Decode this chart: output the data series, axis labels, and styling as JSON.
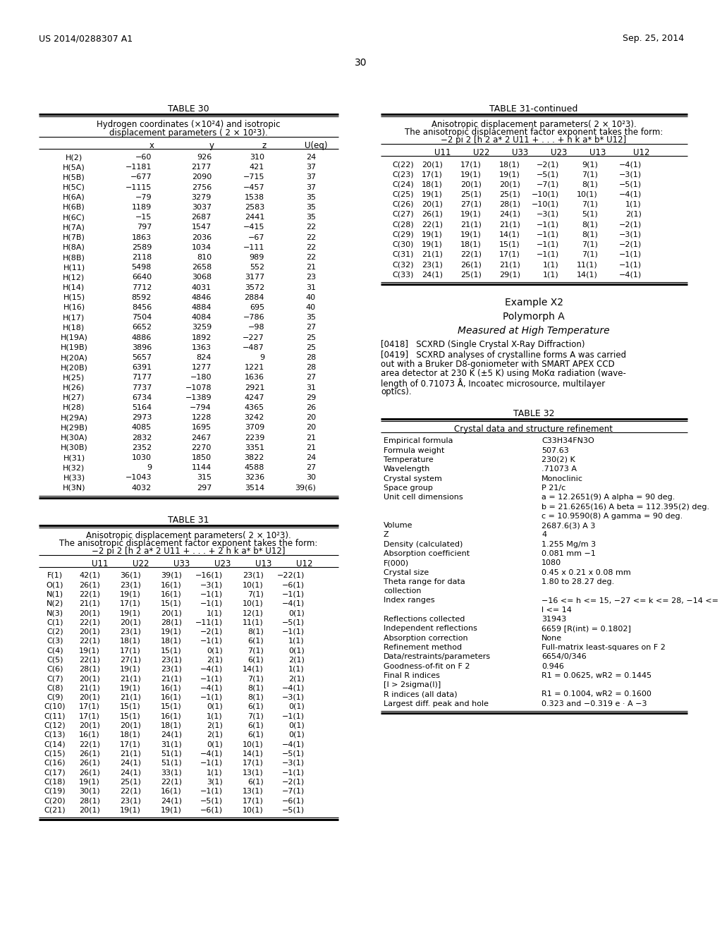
{
  "header_left": "US 2014/0288307 A1",
  "header_right": "Sep. 25, 2014",
  "page_number": "30",
  "background_color": "#ffffff",
  "text_color": "#000000",
  "table30_title": "TABLE 30",
  "table30_subtitle1": "Hydrogen coordinates (×10²4) and isotropic",
  "table30_subtitle2": "displacement parameters ( 2 × 10²3).",
  "table30_headers": [
    "",
    "x",
    "y",
    "z",
    "U(eq)"
  ],
  "table30_data": [
    [
      "H(2)",
      "−60",
      "926",
      "310",
      "24"
    ],
    [
      "H(5A)",
      "−1181",
      "2177",
      "421",
      "37"
    ],
    [
      "H(5B)",
      "−677",
      "2090",
      "−715",
      "37"
    ],
    [
      "H(5C)",
      "−1115",
      "2756",
      "−457",
      "37"
    ],
    [
      "H(6A)",
      "−79",
      "3279",
      "1538",
      "35"
    ],
    [
      "H(6B)",
      "1189",
      "3037",
      "2583",
      "35"
    ],
    [
      "H(6C)",
      "−15",
      "2687",
      "2441",
      "35"
    ],
    [
      "H(7A)",
      "797",
      "1547",
      "−415",
      "22"
    ],
    [
      "H(7B)",
      "1863",
      "2036",
      "−67",
      "22"
    ],
    [
      "H(8A)",
      "2589",
      "1034",
      "−111",
      "22"
    ],
    [
      "H(8B)",
      "2118",
      "810",
      "989",
      "22"
    ],
    [
      "H(11)",
      "5498",
      "2658",
      "552",
      "21"
    ],
    [
      "H(12)",
      "6640",
      "3068",
      "3177",
      "23"
    ],
    [
      "H(14)",
      "7712",
      "4031",
      "3572",
      "31"
    ],
    [
      "H(15)",
      "8592",
      "4846",
      "2884",
      "40"
    ],
    [
      "H(16)",
      "8456",
      "4884",
      "695",
      "40"
    ],
    [
      "H(17)",
      "7504",
      "4084",
      "−786",
      "35"
    ],
    [
      "H(18)",
      "6652",
      "3259",
      "−98",
      "27"
    ],
    [
      "H(19A)",
      "4886",
      "1892",
      "−227",
      "25"
    ],
    [
      "H(19B)",
      "3896",
      "1363",
      "−487",
      "25"
    ],
    [
      "H(20A)",
      "5657",
      "824",
      "9",
      "28"
    ],
    [
      "H(20B)",
      "6391",
      "1277",
      "1221",
      "28"
    ],
    [
      "H(25)",
      "7177",
      "−180",
      "1636",
      "27"
    ],
    [
      "H(26)",
      "7737",
      "−1078",
      "2921",
      "31"
    ],
    [
      "H(27)",
      "6734",
      "−1389",
      "4247",
      "29"
    ],
    [
      "H(28)",
      "5164",
      "−794",
      "4365",
      "26"
    ],
    [
      "H(29A)",
      "2973",
      "1228",
      "3242",
      "20"
    ],
    [
      "H(29B)",
      "4085",
      "1695",
      "3709",
      "20"
    ],
    [
      "H(30A)",
      "2832",
      "2467",
      "2239",
      "21"
    ],
    [
      "H(30B)",
      "2352",
      "2270",
      "3351",
      "21"
    ],
    [
      "H(31)",
      "1030",
      "1850",
      "3822",
      "24"
    ],
    [
      "H(32)",
      "9",
      "1144",
      "4588",
      "27"
    ],
    [
      "H(33)",
      "−1043",
      "315",
      "3236",
      "30"
    ],
    [
      "H(3N)",
      "4032",
      "297",
      "3514",
      "39(6)"
    ]
  ],
  "table31cont_title": "TABLE 31-continued",
  "table31cont_subtitle1": "Anisotropic displacement parameters( 2 × 10²3).",
  "table31cont_subtitle2": "The anisotropic displacement factor exponent takes the form:",
  "table31cont_subtitle3": "−2 pi 2 [h 2 a* 2 U11 + . . . + h k a* b* U12]",
  "table31cont_headers": [
    "",
    "U11",
    "U22",
    "U33",
    "U23",
    "U13",
    "U12"
  ],
  "table31cont_data": [
    [
      "C(22)",
      "20(1)",
      "17(1)",
      "18(1)",
      "−2(1)",
      "9(1)",
      "−4(1)"
    ],
    [
      "C(23)",
      "17(1)",
      "19(1)",
      "19(1)",
      "−5(1)",
      "7(1)",
      "−3(1)"
    ],
    [
      "C(24)",
      "18(1)",
      "20(1)",
      "20(1)",
      "−7(1)",
      "8(1)",
      "−5(1)"
    ],
    [
      "C(25)",
      "19(1)",
      "25(1)",
      "25(1)",
      "−10(1)",
      "10(1)",
      "−4(1)"
    ],
    [
      "C(26)",
      "20(1)",
      "27(1)",
      "28(1)",
      "−10(1)",
      "7(1)",
      "1(1)"
    ],
    [
      "C(27)",
      "26(1)",
      "19(1)",
      "24(1)",
      "−3(1)",
      "5(1)",
      "2(1)"
    ],
    [
      "C(28)",
      "22(1)",
      "21(1)",
      "21(1)",
      "−1(1)",
      "8(1)",
      "−2(1)"
    ],
    [
      "C(29)",
      "19(1)",
      "19(1)",
      "14(1)",
      "−1(1)",
      "8(1)",
      "−3(1)"
    ],
    [
      "C(30)",
      "19(1)",
      "18(1)",
      "15(1)",
      "−1(1)",
      "7(1)",
      "−2(1)"
    ],
    [
      "C(31)",
      "21(1)",
      "22(1)",
      "17(1)",
      "−1(1)",
      "7(1)",
      "−1(1)"
    ],
    [
      "C(32)",
      "23(1)",
      "26(1)",
      "21(1)",
      "1(1)",
      "11(1)",
      "−1(1)"
    ],
    [
      "C(33)",
      "24(1)",
      "25(1)",
      "29(1)",
      "1(1)",
      "14(1)",
      "−4(1)"
    ]
  ],
  "example_text": "Example X2",
  "polymorph_text": "Polymorph A",
  "measured_text": "Measured at High Temperature",
  "para0418": "[0418]   SCXRD (Single Crystal X-Ray Diffraction)",
  "para0419_lines": [
    "[0419]   SCXRD analyses of crystalline forms A was carried",
    "out with a Bruker D8-goniometer with SMART APEX CCD",
    "area detector at 230 K (±5 K) using MoKα radiation (wave-",
    "length of 0.71073 Å, Incoatec microsource, multilayer",
    "optics)."
  ],
  "table31_title": "TABLE 31",
  "table31_subtitle1": "Anisotropic displacement parameters( 2 × 10²3).",
  "table31_subtitle2": "The anisotropic displacement factor exponent takes the form:",
  "table31_subtitle3": "−2 pi 2 [h 2 a* 2 U11 + . . . + 2 h k a* b* U12]",
  "table31_headers": [
    "",
    "U11",
    "U22",
    "U33",
    "U23",
    "U13",
    "U12"
  ],
  "table31_data": [
    [
      "F(1)",
      "42(1)",
      "36(1)",
      "39(1)",
      "−16(1)",
      "23(1)",
      "−22(1)"
    ],
    [
      "O(1)",
      "26(1)",
      "23(1)",
      "16(1)",
      "−3(1)",
      "10(1)",
      "−6(1)"
    ],
    [
      "N(1)",
      "22(1)",
      "19(1)",
      "16(1)",
      "−1(1)",
      "7(1)",
      "−1(1)"
    ],
    [
      "N(2)",
      "21(1)",
      "17(1)",
      "15(1)",
      "−1(1)",
      "10(1)",
      "−4(1)"
    ],
    [
      "N(3)",
      "20(1)",
      "19(1)",
      "20(1)",
      "1(1)",
      "12(1)",
      "0(1)"
    ],
    [
      "C(1)",
      "22(1)",
      "20(1)",
      "28(1)",
      "−11(1)",
      "11(1)",
      "−5(1)"
    ],
    [
      "C(2)",
      "20(1)",
      "23(1)",
      "19(1)",
      "−2(1)",
      "8(1)",
      "−1(1)"
    ],
    [
      "C(3)",
      "22(1)",
      "18(1)",
      "18(1)",
      "−1(1)",
      "6(1)",
      "1(1)"
    ],
    [
      "C(4)",
      "19(1)",
      "17(1)",
      "15(1)",
      "0(1)",
      "7(1)",
      "0(1)"
    ],
    [
      "C(5)",
      "22(1)",
      "27(1)",
      "23(1)",
      "2(1)",
      "6(1)",
      "2(1)"
    ],
    [
      "C(6)",
      "28(1)",
      "19(1)",
      "23(1)",
      "−4(1)",
      "14(1)",
      "1(1)"
    ],
    [
      "C(7)",
      "20(1)",
      "21(1)",
      "21(1)",
      "−1(1)",
      "7(1)",
      "2(1)"
    ],
    [
      "C(8)",
      "21(1)",
      "19(1)",
      "16(1)",
      "−4(1)",
      "8(1)",
      "−4(1)"
    ],
    [
      "C(9)",
      "20(1)",
      "21(1)",
      "16(1)",
      "−1(1)",
      "8(1)",
      "−3(1)"
    ],
    [
      "C(10)",
      "17(1)",
      "15(1)",
      "15(1)",
      "0(1)",
      "6(1)",
      "0(1)"
    ],
    [
      "C(11)",
      "17(1)",
      "15(1)",
      "16(1)",
      "1(1)",
      "7(1)",
      "−1(1)"
    ],
    [
      "C(12)",
      "20(1)",
      "20(1)",
      "18(1)",
      "2(1)",
      "6(1)",
      "0(1)"
    ],
    [
      "C(13)",
      "16(1)",
      "18(1)",
      "24(1)",
      "2(1)",
      "6(1)",
      "0(1)"
    ],
    [
      "C(14)",
      "22(1)",
      "17(1)",
      "31(1)",
      "0(1)",
      "10(1)",
      "−4(1)"
    ],
    [
      "C(15)",
      "26(1)",
      "21(1)",
      "51(1)",
      "−4(1)",
      "14(1)",
      "−5(1)"
    ],
    [
      "C(16)",
      "26(1)",
      "24(1)",
      "51(1)",
      "−1(1)",
      "17(1)",
      "−3(1)"
    ],
    [
      "C(17)",
      "26(1)",
      "24(1)",
      "33(1)",
      "1(1)",
      "13(1)",
      "−1(1)"
    ],
    [
      "C(18)",
      "19(1)",
      "25(1)",
      "22(1)",
      "3(1)",
      "6(1)",
      "−2(1)"
    ],
    [
      "C(19)",
      "30(1)",
      "22(1)",
      "16(1)",
      "−1(1)",
      "13(1)",
      "−7(1)"
    ],
    [
      "C(20)",
      "28(1)",
      "23(1)",
      "24(1)",
      "−5(1)",
      "17(1)",
      "−6(1)"
    ],
    [
      "C(21)",
      "20(1)",
      "19(1)",
      "19(1)",
      "−6(1)",
      "10(1)",
      "−5(1)"
    ]
  ],
  "table32_title": "TABLE 32",
  "table32_subtitle": "Crystal data and structure refinement",
  "table32_data": [
    [
      "Empirical formula",
      "C33H34FN3O"
    ],
    [
      "Formula weight",
      "507.63"
    ],
    [
      "Temperature",
      "230(2) K"
    ],
    [
      "Wavelength",
      ".71073 A"
    ],
    [
      "Crystal system",
      "Monoclinic"
    ],
    [
      "Space group",
      "P 21/c"
    ],
    [
      "Unit cell dimensions",
      "a = 12.2651(9) A alpha = 90 deg."
    ],
    [
      "",
      "b = 21.6265(16) A beta = 112.395(2) deg."
    ],
    [
      "",
      "c = 10.9590(8) A gamma = 90 deg."
    ],
    [
      "Volume",
      "2687.6(3) A 3"
    ],
    [
      "Z",
      "4"
    ],
    [
      "Density (calculated)",
      "1.255 Mg/m 3"
    ],
    [
      "Absorption coefficient",
      "0.081 mm −1"
    ],
    [
      "F(000)",
      "1080"
    ],
    [
      "Crystal size",
      "0.45 x 0.21 x 0.08 mm"
    ],
    [
      "Theta range for data",
      "1.80 to 28.27 deg."
    ],
    [
      "collection",
      ""
    ],
    [
      "Index ranges",
      "−16 <= h <= 15, −27 <= k <= 28, −14 <="
    ],
    [
      "",
      "l <= 14"
    ],
    [
      "Reflections collected",
      "31943"
    ],
    [
      "Independent reflections",
      "6659 [R(int) = 0.1802]"
    ],
    [
      "Absorption correction",
      "None"
    ],
    [
      "Refinement method",
      "Full-matrix least-squares on F 2"
    ],
    [
      "Data/restraints/parameters",
      "6654/0/346"
    ],
    [
      "Goodness-of-fit on F 2",
      "0.946"
    ],
    [
      "Final R indices",
      "R1 = 0.0625, wR2 = 0.1445"
    ],
    [
      "[I > 2sigma(I)]",
      ""
    ],
    [
      "R indices (all data)",
      "R1 = 0.1004, wR2 = 0.1600"
    ],
    [
      "Largest diff. peak and hole",
      "0.323 and −0.319 e · A −3"
    ]
  ]
}
